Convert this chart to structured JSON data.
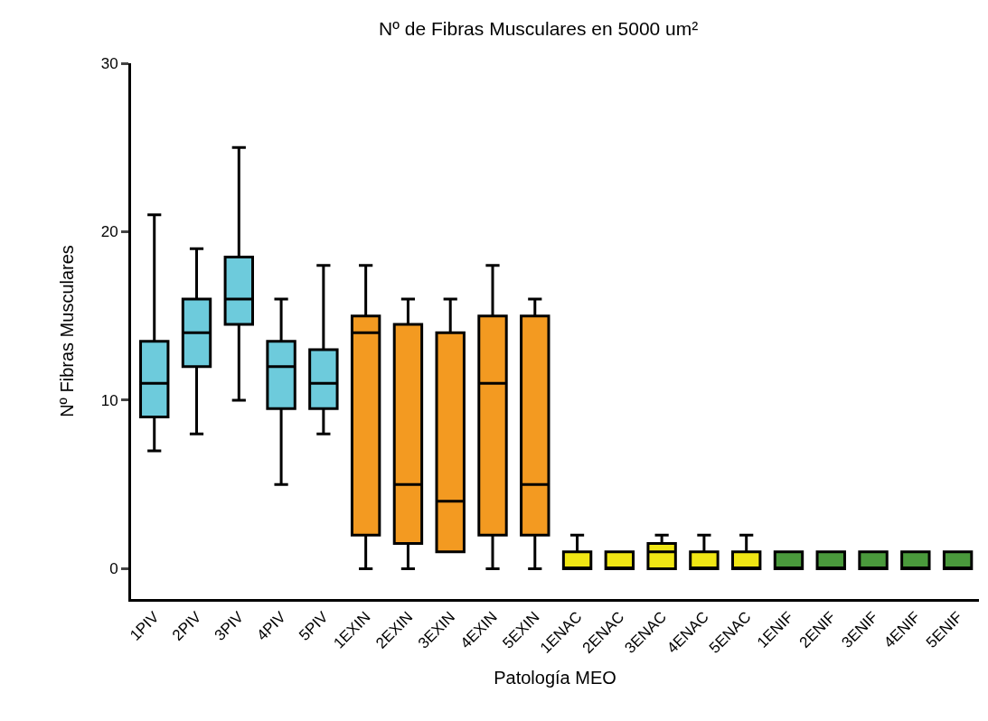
{
  "chart_data": {
    "type": "box",
    "title": "Nº de Fibras Musculares en 5000 um²",
    "xlabel": "Patología MEO",
    "ylabel": "Nº Fibras Musculares",
    "categories": [
      "1PIV",
      "2PIV",
      "3PIV",
      "4PIV",
      "5PIV",
      "1EXIN",
      "2EXIN",
      "3EXIN",
      "4EXIN",
      "5EXIN",
      "1ENAC",
      "2ENAC",
      "3ENAC",
      "4ENAC",
      "5ENAC",
      "1ENIF",
      "2ENIF",
      "3ENIF",
      "4ENIF",
      "5ENIF"
    ],
    "boxes": [
      {
        "low": 7,
        "q1": 9,
        "median": 11,
        "q3": 13.5,
        "high": 21
      },
      {
        "low": 8,
        "q1": 12,
        "median": 14,
        "q3": 16,
        "high": 19
      },
      {
        "low": 10,
        "q1": 14.5,
        "median": 16,
        "q3": 18.5,
        "high": 25
      },
      {
        "low": 5,
        "q1": 9.5,
        "median": 12,
        "q3": 13.5,
        "high": 16
      },
      {
        "low": 8,
        "q1": 9.5,
        "median": 11,
        "q3": 13,
        "high": 18
      },
      {
        "low": 0,
        "q1": 2,
        "median": 14,
        "q3": 15,
        "high": 18
      },
      {
        "low": 0,
        "q1": 1.5,
        "median": 5,
        "q3": 14.5,
        "high": 16
      },
      {
        "low": 1,
        "q1": 1,
        "median": 4,
        "q3": 14,
        "high": 16
      },
      {
        "low": 0,
        "q1": 2,
        "median": 11,
        "q3": 15,
        "high": 18
      },
      {
        "low": 0,
        "q1": 2,
        "median": 5,
        "q3": 15,
        "high": 16
      },
      {
        "low": 0,
        "q1": 0,
        "median": 0,
        "q3": 1,
        "high": 2
      },
      {
        "low": 0,
        "q1": 0,
        "median": 0,
        "q3": 1,
        "high": 1
      },
      {
        "low": 0,
        "q1": 0,
        "median": 1,
        "q3": 1.5,
        "high": 2
      },
      {
        "low": 0,
        "q1": 0,
        "median": 0,
        "q3": 1,
        "high": 2
      },
      {
        "low": 0,
        "q1": 0,
        "median": 0,
        "q3": 1,
        "high": 2
      },
      {
        "low": 0,
        "q1": 0,
        "median": 0,
        "q3": 1,
        "high": 1
      },
      {
        "low": 0,
        "q1": 0,
        "median": 0,
        "q3": 1,
        "high": 1
      },
      {
        "low": 0,
        "q1": 0,
        "median": 0,
        "q3": 1,
        "high": 1
      },
      {
        "low": 0,
        "q1": 0,
        "median": 0,
        "q3": 1,
        "high": 1
      },
      {
        "low": 0,
        "q1": 0,
        "median": 0,
        "q3": 1,
        "high": 1
      }
    ],
    "colors": [
      "#6dcbdc",
      "#6dcbdc",
      "#6dcbdc",
      "#6dcbdc",
      "#6dcbdc",
      "#f39a21",
      "#f39a21",
      "#f39a21",
      "#f39a21",
      "#f39a21",
      "#f0e614",
      "#f0e614",
      "#f0e614",
      "#f0e614",
      "#f0e614",
      "#4a9a3c",
      "#4a9a3c",
      "#4a9a3c",
      "#4a9a3c",
      "#4a9a3c"
    ],
    "ylim": [
      -1.8,
      30
    ],
    "yticks": [
      0,
      10,
      20,
      30
    ],
    "grid": false
  }
}
